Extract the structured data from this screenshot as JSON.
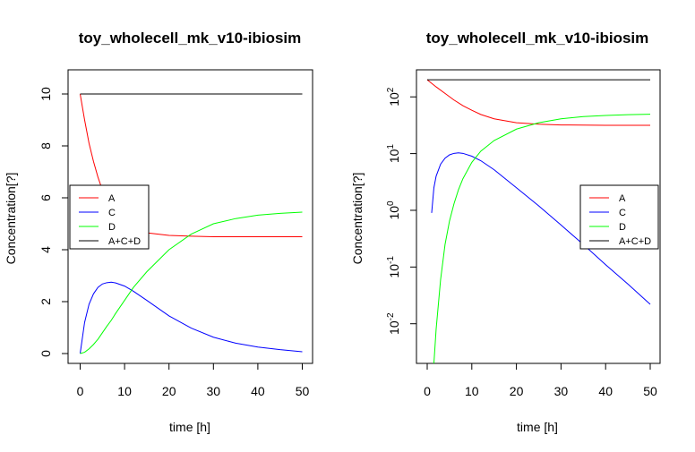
{
  "colors": {
    "A": "#ff0000",
    "C": "#0000ff",
    "D": "#00ff00",
    "A+C+D": "#000000"
  },
  "chart_data": [
    {
      "type": "line",
      "title": "toy_wholecell_mk_v10-ibiosim",
      "xlabel": "time [h]",
      "ylabel": "Concentration[?]",
      "xlim": [
        0,
        50
      ],
      "ylim": [
        0,
        10
      ],
      "log_y": false,
      "x_ticks": [
        "0",
        "10",
        "20",
        "30",
        "40",
        "50"
      ],
      "y_ticks": [
        "0",
        "2",
        "4",
        "6",
        "8",
        "10"
      ],
      "legend_position": "left",
      "x": [
        0,
        1,
        2,
        3,
        4,
        5,
        6,
        7,
        8,
        10,
        12,
        15,
        20,
        25,
        30,
        35,
        40,
        45,
        50
      ],
      "series": [
        {
          "name": "A",
          "values": [
            10,
            9.0,
            8.1,
            7.4,
            6.8,
            6.3,
            5.9,
            5.6,
            5.35,
            5.0,
            4.8,
            4.65,
            4.55,
            4.52,
            4.5,
            4.5,
            4.5,
            4.5,
            4.5
          ]
        },
        {
          "name": "C",
          "values": [
            0,
            1.2,
            1.9,
            2.3,
            2.55,
            2.68,
            2.73,
            2.75,
            2.72,
            2.6,
            2.4,
            2.05,
            1.45,
            0.98,
            0.63,
            0.4,
            0.25,
            0.15,
            0.07
          ]
        },
        {
          "name": "D",
          "values": [
            0,
            0.05,
            0.18,
            0.35,
            0.55,
            0.8,
            1.05,
            1.28,
            1.55,
            2.05,
            2.55,
            3.15,
            4.0,
            4.6,
            5.0,
            5.2,
            5.33,
            5.4,
            5.45
          ]
        },
        {
          "name": "A+C+D",
          "values": [
            10,
            10,
            10,
            10,
            10,
            10,
            10,
            10,
            10,
            10,
            10,
            10,
            10,
            10,
            10,
            10,
            10,
            10,
            10
          ]
        }
      ]
    },
    {
      "type": "line",
      "title": "toy_wholecell_mk_v10-ibiosim",
      "xlabel": "time [h]",
      "ylabel": "Concentration[?]",
      "xlim": [
        0,
        50
      ],
      "ylim": [
        0.002,
        300
      ],
      "log_y": true,
      "x_ticks": [
        "0",
        "10",
        "20",
        "30",
        "40",
        "50"
      ],
      "y_ticks": [
        {
          "base": "10",
          "exp": "-2",
          "value": 0.01
        },
        {
          "base": "10",
          "exp": "-1",
          "value": 0.1
        },
        {
          "base": "10",
          "exp": "0",
          "value": 1
        },
        {
          "base": "10",
          "exp": "1",
          "value": 10
        },
        {
          "base": "10",
          "exp": "2",
          "value": 100
        }
      ],
      "legend_position": "right",
      "x": [
        0,
        1,
        1.5,
        2,
        3,
        4,
        5,
        6,
        7,
        8,
        10,
        12,
        15,
        20,
        25,
        30,
        35,
        40,
        45,
        50
      ],
      "series": [
        {
          "name": "A",
          "x": [
            0,
            2,
            4,
            6,
            8,
            10,
            12,
            15,
            20,
            25,
            30,
            40,
            50
          ],
          "values": [
            200,
            150,
            115,
            88,
            70,
            58,
            49,
            41,
            35,
            33,
            32,
            31.6,
            31.5
          ]
        },
        {
          "name": "C",
          "x": [
            1,
            1.5,
            2,
            3,
            4,
            5,
            6,
            7,
            8,
            10,
            12,
            15,
            20,
            25,
            30,
            35,
            40,
            45,
            50
          ],
          "values": [
            0.9,
            2.5,
            4.0,
            6.5,
            8.3,
            9.5,
            10.1,
            10.3,
            10.1,
            9.0,
            7.5,
            5.2,
            2.5,
            1.2,
            0.55,
            0.25,
            0.11,
            0.05,
            0.022
          ]
        },
        {
          "name": "D",
          "x": [
            1.5,
            2,
            3,
            4,
            5,
            6,
            7,
            8,
            10,
            12,
            15,
            20,
            25,
            30,
            35,
            40,
            45,
            50
          ],
          "values": [
            0.002,
            0.008,
            0.06,
            0.25,
            0.65,
            1.3,
            2.3,
            3.6,
            7.0,
            11,
            17,
            27,
            35,
            41,
            45,
            47,
            48.5,
            49.5
          ]
        },
        {
          "name": "A+C+D",
          "x": [
            0,
            50
          ],
          "values": [
            200,
            200
          ]
        }
      ]
    }
  ]
}
